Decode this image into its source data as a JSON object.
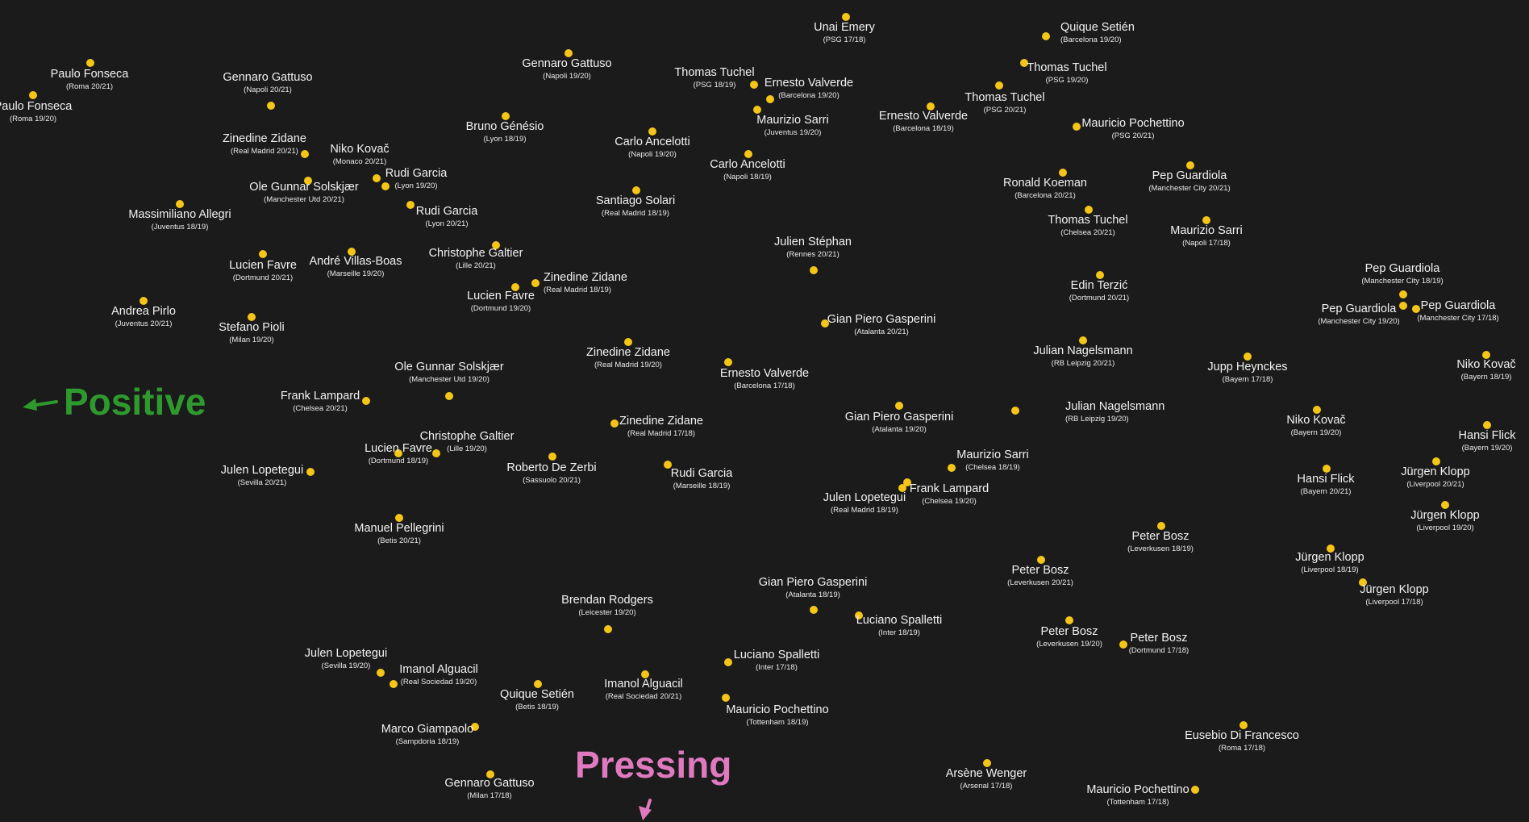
{
  "colors": {
    "background": "#1b1b1b",
    "point": "#f5c518",
    "label": "#f2f2f2",
    "positive": "#2e9a2e",
    "pressing": "#e07ac0"
  },
  "axes": {
    "positive_label": "Positive",
    "pressing_label": "Pressing"
  },
  "chart_data": {
    "type": "scatter",
    "title": "",
    "points": [
      {
        "name": "Paulo Fonseca",
        "season": "Roma 20/21"
      },
      {
        "name": "Paulo Fonseca",
        "season": "Roma 19/20"
      },
      {
        "name": "Gennaro Gattuso",
        "season": "Napoli 20/21"
      },
      {
        "name": "Gennaro Gattuso",
        "season": "Napoli 19/20"
      },
      {
        "name": "Unai Emery",
        "season": "PSG 17/18"
      },
      {
        "name": "Quique Setién",
        "season": "Barcelona 19/20"
      },
      {
        "name": "Thomas Tuchel",
        "season": "PSG 19/20"
      },
      {
        "name": "Thomas Tuchel",
        "season": "PSG 18/19"
      },
      {
        "name": "Ernesto Valverde",
        "season": "Barcelona 19/20"
      },
      {
        "name": "Maurizio Sarri",
        "season": "Juventus 19/20"
      },
      {
        "name": "Ernesto Valverde",
        "season": "Barcelona 18/19"
      },
      {
        "name": "Thomas Tuchel",
        "season": "PSG 20/21"
      },
      {
        "name": "Mauricio Pochettino",
        "season": "PSG 20/21"
      },
      {
        "name": "Bruno Génésio",
        "season": "Lyon 18/19"
      },
      {
        "name": "Carlo Ancelotti",
        "season": "Napoli 19/20"
      },
      {
        "name": "Carlo Ancelotti",
        "season": "Napoli 18/19"
      },
      {
        "name": "Zinedine Zidane",
        "season": "Real Madrid 20/21"
      },
      {
        "name": "Niko Kovač",
        "season": "Monaco 20/21"
      },
      {
        "name": "Rudi Garcia",
        "season": "Lyon 19/20"
      },
      {
        "name": "Ole Gunnar Solskjær",
        "season": "Manchester Utd 20/21"
      },
      {
        "name": "Massimiliano Allegri",
        "season": "Juventus 18/19"
      },
      {
        "name": "Rudi Garcia",
        "season": "Lyon 20/21"
      },
      {
        "name": "Santiago Solari",
        "season": "Real Madrid 18/19"
      },
      {
        "name": "Ronald Koeman",
        "season": "Barcelona 20/21"
      },
      {
        "name": "Pep Guardiola",
        "season": "Manchester City 20/21"
      },
      {
        "name": "Thomas Tuchel",
        "season": "Chelsea 20/21"
      },
      {
        "name": "Maurizio Sarri",
        "season": "Napoli 17/18"
      },
      {
        "name": "Julien Stéphan",
        "season": "Rennes 20/21"
      },
      {
        "name": "Lucien Favre",
        "season": "Dortmund 20/21"
      },
      {
        "name": "André Villas-Boas",
        "season": "Marseille 19/20"
      },
      {
        "name": "Christophe Galtier",
        "season": "Lille 20/21"
      },
      {
        "name": "Zinedine Zidane",
        "season": "Real Madrid 18/19"
      },
      {
        "name": "Lucien Favre",
        "season": "Dortmund 19/20"
      },
      {
        "name": "Edin Terzić",
        "season": "Dortmund 20/21"
      },
      {
        "name": "Pep Guardiola",
        "season": "Manchester City 18/19"
      },
      {
        "name": "Pep Guardiola",
        "season": "Manchester City 19/20"
      },
      {
        "name": "Pep Guardiola",
        "season": "Manchester City 17/18"
      },
      {
        "name": "Andrea Pirlo",
        "season": "Juventus 20/21"
      },
      {
        "name": "Stefano Pioli",
        "season": "Milan 19/20"
      },
      {
        "name": "Gian Piero Gasperini",
        "season": "Atalanta 20/21"
      },
      {
        "name": "Zinedine Zidane",
        "season": "Real Madrid 19/20"
      },
      {
        "name": "Julian Nagelsmann",
        "season": "RB Leipzig 20/21"
      },
      {
        "name": "Ernesto Valverde",
        "season": "Barcelona 17/18"
      },
      {
        "name": "Ole Gunnar Solskjær",
        "season": "Manchester Utd 19/20"
      },
      {
        "name": "Jupp Heynckes",
        "season": "Bayern 17/18"
      },
      {
        "name": "Niko Kovač",
        "season": "Bayern 18/19"
      },
      {
        "name": "Frank Lampard",
        "season": "Chelsea 20/21"
      },
      {
        "name": "Gian Piero Gasperini",
        "season": "Atalanta 19/20"
      },
      {
        "name": "Julian Nagelsmann",
        "season": "RB Leipzig 19/20"
      },
      {
        "name": "Zinedine Zidane",
        "season": "Real Madrid 17/18"
      },
      {
        "name": "Niko Kovač",
        "season": "Bayern 19/20"
      },
      {
        "name": "Hansi Flick",
        "season": "Bayern 19/20"
      },
      {
        "name": "Christophe Galtier",
        "season": "Lille 19/20"
      },
      {
        "name": "Lucien Favre",
        "season": "Dortmund 18/19"
      },
      {
        "name": "Maurizio Sarri",
        "season": "Chelsea 18/19"
      },
      {
        "name": "Jürgen Klopp",
        "season": "Liverpool 20/21"
      },
      {
        "name": "Julen Lopetegui",
        "season": "Sevilla 20/21"
      },
      {
        "name": "Roberto De Zerbi",
        "season": "Sassuolo 20/21"
      },
      {
        "name": "Rudi Garcia",
        "season": "Marseille 18/19"
      },
      {
        "name": "Hansi Flick",
        "season": "Bayern 20/21"
      },
      {
        "name": "Frank Lampard",
        "season": "Chelsea 19/20"
      },
      {
        "name": "Julen Lopetegui",
        "season": "Real Madrid 18/19"
      },
      {
        "name": "Jürgen Klopp",
        "season": "Liverpool 19/20"
      },
      {
        "name": "Manuel Pellegrini",
        "season": "Betis 20/21"
      },
      {
        "name": "Peter Bosz",
        "season": "Leverkusen 18/19"
      },
      {
        "name": "Jürgen Klopp",
        "season": "Liverpool 18/19"
      },
      {
        "name": "Peter Bosz",
        "season": "Leverkusen 20/21"
      },
      {
        "name": "Gian Piero Gasperini",
        "season": "Atalanta 18/19"
      },
      {
        "name": "Jürgen Klopp",
        "season": "Liverpool 17/18"
      },
      {
        "name": "Brendan Rodgers",
        "season": "Leicester 19/20"
      },
      {
        "name": "Luciano Spalletti",
        "season": "Inter 18/19"
      },
      {
        "name": "Peter Bosz",
        "season": "Leverkusen 19/20"
      },
      {
        "name": "Peter Bosz",
        "season": "Dortmund 17/18"
      },
      {
        "name": "Luciano Spalletti",
        "season": "Inter 17/18"
      },
      {
        "name": "Julen Lopetegui",
        "season": "Sevilla 19/20"
      },
      {
        "name": "Imanol Alguacil",
        "season": "Real Sociedad 19/20"
      },
      {
        "name": "Imanol Alguacil",
        "season": "Real Sociedad 20/21"
      },
      {
        "name": "Quique Setién",
        "season": "Betis 18/19"
      },
      {
        "name": "Mauricio Pochettino",
        "season": "Tottenham 18/19"
      },
      {
        "name": "Marco Giampaolo",
        "season": "Sampdoria 18/19"
      },
      {
        "name": "Eusebio Di Francesco",
        "season": "Roma 17/18"
      },
      {
        "name": "Arsène Wenger",
        "season": "Arsenal 17/18"
      },
      {
        "name": "Gennaro Gattuso",
        "season": "Milan 17/18"
      },
      {
        "name": "Mauricio Pochettino",
        "season": "Tottenham 17/18"
      }
    ]
  }
}
